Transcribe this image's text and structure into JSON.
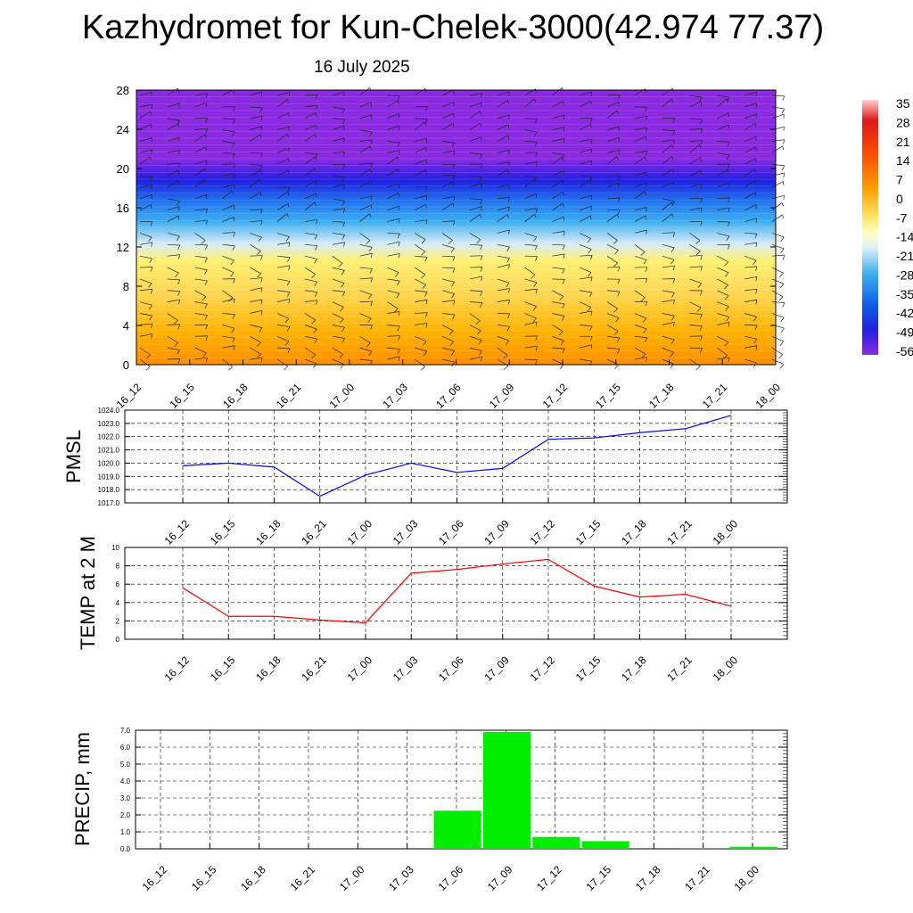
{
  "title": "Kazhydromet for Kun-Chelek-3000(42.974 77.37)",
  "subtitle": "16 July 2025",
  "time_labels": [
    "16_12",
    "16_15",
    "16_18",
    "16_21",
    "17_00",
    "17_03",
    "17_06",
    "17_09",
    "17_12",
    "17_15",
    "17_18",
    "17_21",
    "18_00"
  ],
  "colors": {
    "pmsl_line": "#0000ff",
    "temp_line": "#ff0000",
    "precip_bar": "#00ee00",
    "colorbar_top": "#ee2020",
    "colorbar_bottom": "#7a1ef0"
  },
  "chart_data": [
    {
      "type": "heatmap",
      "name": "upper-air",
      "xlabel": "",
      "ylabel": "",
      "ylim": [
        0,
        28
      ],
      "yticks": [
        "0",
        "4",
        "8",
        "12",
        "16",
        "20",
        "24",
        "28"
      ],
      "colorbar_labels": [
        "35",
        "28",
        "21",
        "14",
        "7",
        "0",
        "-7",
        "-14",
        "-21",
        "-28",
        "-35",
        "-42",
        "-49",
        "-56"
      ],
      "wind_barbs": true
    },
    {
      "type": "line",
      "ylabel": "PMSL",
      "ylim": [
        1017.0,
        1024.0
      ],
      "yticks": [
        "1017.0",
        "1018.0",
        "1019.0",
        "1020.0",
        "1021.0",
        "1022.0",
        "1023.0",
        "1024.0"
      ],
      "series": [
        {
          "values": [
            1019.8,
            1020.0,
            1019.7,
            1017.5,
            1019.1,
            1020.0,
            1019.3,
            1019.6,
            1021.8,
            1021.9,
            1022.3,
            1022.6,
            1023.6
          ]
        }
      ],
      "grid": true
    },
    {
      "type": "line",
      "ylabel": "TEMP at 2 M",
      "ylim": [
        0,
        10
      ],
      "yticks": [
        "0",
        "2",
        "4",
        "6",
        "8",
        "10"
      ],
      "series": [
        {
          "values": [
            5.6,
            2.5,
            2.5,
            2.1,
            1.8,
            7.2,
            7.6,
            8.2,
            8.7,
            5.8,
            4.6,
            4.9,
            3.6
          ]
        }
      ],
      "grid": true
    },
    {
      "type": "bar",
      "ylabel": "PRECIP, mm",
      "ylim": [
        0,
        7.0
      ],
      "yticks": [
        "0.0",
        "1.0",
        "2.0",
        "3.0",
        "4.0",
        "5.0",
        "6.0",
        "7.0"
      ],
      "values": [
        0,
        0,
        0,
        0,
        0,
        0,
        2.25,
        6.9,
        0.7,
        0.45,
        0,
        0.05,
        0.12
      ],
      "grid": true
    }
  ]
}
